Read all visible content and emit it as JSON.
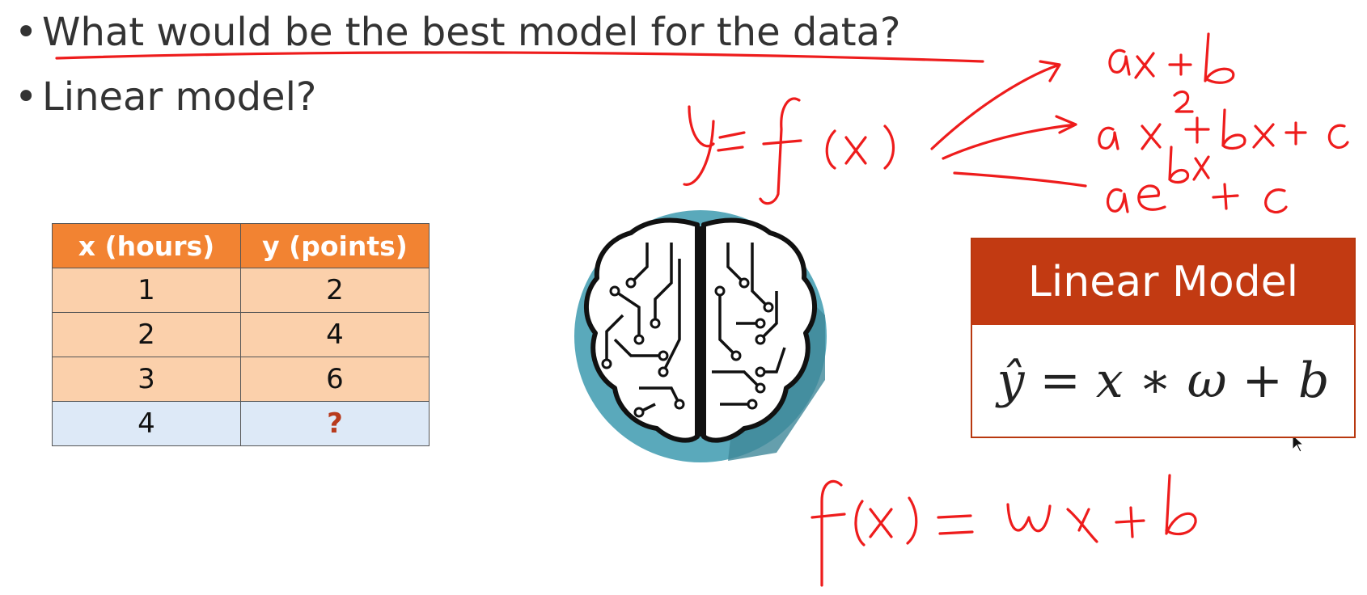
{
  "bullets": [
    "What would be the best model for the data?",
    "Linear model?"
  ],
  "table": {
    "headers": [
      "x (hours)",
      "y (points)"
    ],
    "rows": [
      [
        "1",
        "2"
      ],
      [
        "2",
        "4"
      ],
      [
        "3",
        "6"
      ]
    ],
    "predict_row": [
      "4",
      "?"
    ]
  },
  "brain_icon": "brain-circuit-icon",
  "linear_model": {
    "title": "Linear Model",
    "formula": "ŷ = x ∗ ω + b"
  },
  "handwriting": {
    "lhs": "y=f(x)",
    "options": [
      "ax+b",
      "ax^2+bx+c",
      "ae^bx+c"
    ],
    "bottom": "f(x) = wx + b"
  },
  "colors": {
    "ink": "#ee1c1c",
    "table_header": "#f28332",
    "table_cell": "#fbd0ab",
    "predict_row": "#dde9f7",
    "model_header": "#c23a12"
  }
}
